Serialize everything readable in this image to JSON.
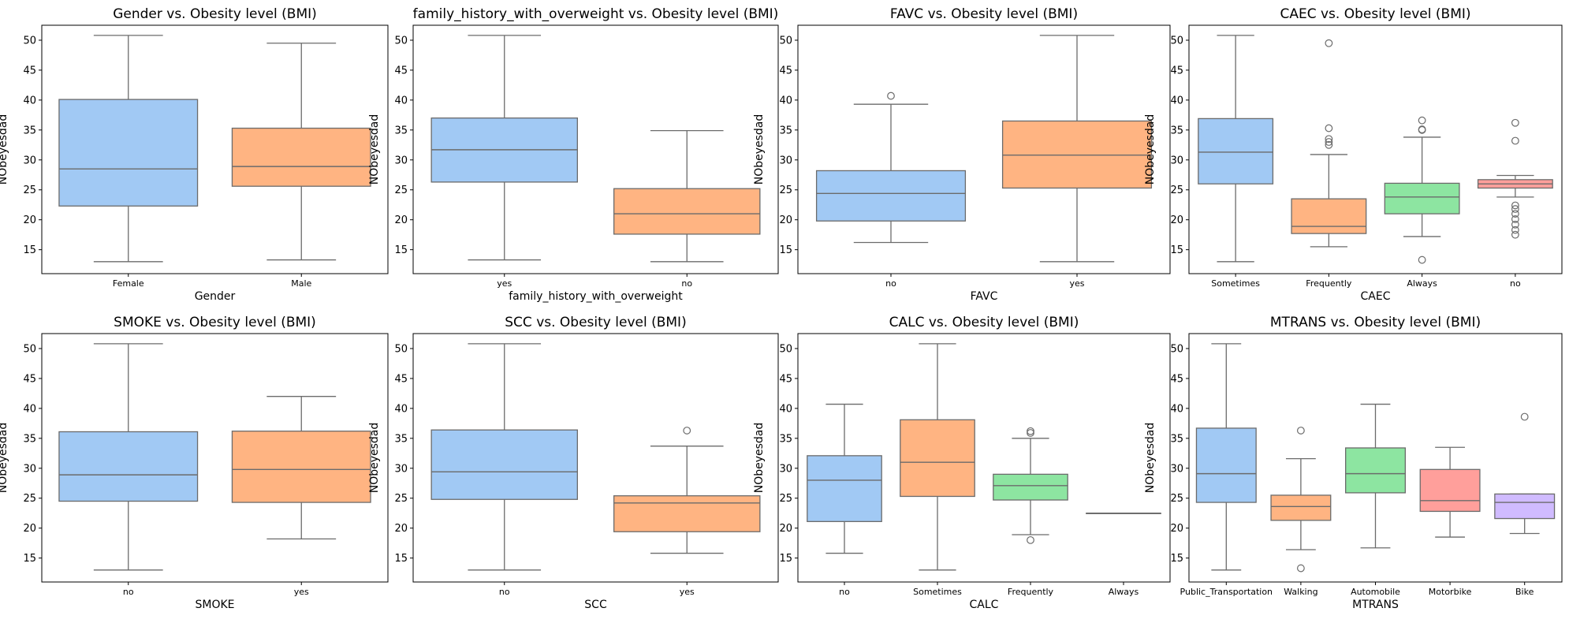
{
  "palette": [
    "#a1c9f4",
    "#ffb482",
    "#8de5a1",
    "#ff9f9b",
    "#d0bbff"
  ],
  "chart_data": [
    {
      "type": "box",
      "title": "Gender vs. Obesity level (BMI)",
      "xlabel": "Gender",
      "ylabel": "NObeyesdad",
      "ylim": [
        11,
        52.5
      ],
      "yticks": [
        15,
        20,
        25,
        30,
        35,
        40,
        45,
        50
      ],
      "categories": [
        "Female",
        "Male"
      ],
      "boxes": [
        {
          "min": 13.0,
          "q1": 22.3,
          "median": 28.5,
          "q3": 40.1,
          "max": 50.8,
          "outliers": []
        },
        {
          "min": 13.3,
          "q1": 25.6,
          "median": 28.9,
          "q3": 35.3,
          "max": 49.5,
          "outliers": []
        }
      ]
    },
    {
      "type": "box",
      "title": "family_history_with_overweight vs. Obesity level (BMI)",
      "xlabel": "family_history_with_overweight",
      "ylabel": "NObeyesdad",
      "ylim": [
        11,
        52.5
      ],
      "yticks": [
        15,
        20,
        25,
        30,
        35,
        40,
        45,
        50
      ],
      "categories": [
        "yes",
        "no"
      ],
      "boxes": [
        {
          "min": 13.3,
          "q1": 26.3,
          "median": 31.7,
          "q3": 37.0,
          "max": 50.8,
          "outliers": []
        },
        {
          "min": 13.0,
          "q1": 17.6,
          "median": 21.0,
          "q3": 25.2,
          "max": 34.9,
          "outliers": []
        }
      ]
    },
    {
      "type": "box",
      "title": "FAVC vs. Obesity level (BMI)",
      "xlabel": "FAVC",
      "ylabel": "NObeyesdad",
      "ylim": [
        11,
        52.5
      ],
      "yticks": [
        15,
        20,
        25,
        30,
        35,
        40,
        45,
        50
      ],
      "categories": [
        "no",
        "yes"
      ],
      "boxes": [
        {
          "min": 16.2,
          "q1": 19.8,
          "median": 24.4,
          "q3": 28.2,
          "max": 39.3,
          "outliers": [
            40.7
          ]
        },
        {
          "min": 13.0,
          "q1": 25.3,
          "median": 30.8,
          "q3": 36.5,
          "max": 50.8,
          "outliers": []
        }
      ]
    },
    {
      "type": "box",
      "title": "CAEC vs. Obesity level (BMI)",
      "xlabel": "CAEC",
      "ylabel": "NObeyesdad",
      "ylim": [
        11,
        52.5
      ],
      "yticks": [
        15,
        20,
        25,
        30,
        35,
        40,
        45,
        50
      ],
      "categories": [
        "Sometimes",
        "Frequently",
        "Always",
        "no"
      ],
      "boxes": [
        {
          "min": 13.0,
          "q1": 26.0,
          "median": 31.3,
          "q3": 36.9,
          "max": 50.8,
          "outliers": []
        },
        {
          "min": 15.5,
          "q1": 17.7,
          "median": 18.9,
          "q3": 23.5,
          "max": 30.9,
          "outliers": [
            32.5,
            33.0,
            33.5,
            35.3,
            49.5
          ]
        },
        {
          "min": 17.2,
          "q1": 21.0,
          "median": 23.8,
          "q3": 26.1,
          "max": 33.8,
          "outliers": [
            13.3,
            35.0,
            35.1,
            36.6
          ]
        },
        {
          "min": 23.8,
          "q1": 25.3,
          "median": 26.0,
          "q3": 26.7,
          "max": 27.4,
          "outliers": [
            17.5,
            18.3,
            19.2,
            20.1,
            21.0,
            21.8,
            22.4,
            33.2,
            36.2
          ]
        }
      ]
    },
    {
      "type": "box",
      "title": "SMOKE vs. Obesity level (BMI)",
      "xlabel": "SMOKE",
      "ylabel": "NObeyesdad",
      "ylim": [
        11,
        52.5
      ],
      "yticks": [
        15,
        20,
        25,
        30,
        35,
        40,
        45,
        50
      ],
      "categories": [
        "no",
        "yes"
      ],
      "boxes": [
        {
          "min": 13.0,
          "q1": 24.5,
          "median": 28.9,
          "q3": 36.1,
          "max": 50.8,
          "outliers": []
        },
        {
          "min": 18.2,
          "q1": 24.3,
          "median": 29.8,
          "q3": 36.2,
          "max": 42.0,
          "outliers": []
        }
      ]
    },
    {
      "type": "box",
      "title": "SCC vs. Obesity level (BMI)",
      "xlabel": "SCC",
      "ylabel": "NObeyesdad",
      "ylim": [
        11,
        52.5
      ],
      "yticks": [
        15,
        20,
        25,
        30,
        35,
        40,
        45,
        50
      ],
      "categories": [
        "no",
        "yes"
      ],
      "boxes": [
        {
          "min": 13.0,
          "q1": 24.8,
          "median": 29.4,
          "q3": 36.4,
          "max": 50.8,
          "outliers": []
        },
        {
          "min": 15.8,
          "q1": 19.4,
          "median": 24.2,
          "q3": 25.4,
          "max": 33.7,
          "outliers": [
            36.3
          ]
        }
      ]
    },
    {
      "type": "box",
      "title": "CALC vs. Obesity level (BMI)",
      "xlabel": "CALC",
      "ylabel": "NObeyesdad",
      "ylim": [
        11,
        52.5
      ],
      "yticks": [
        15,
        20,
        25,
        30,
        35,
        40,
        45,
        50
      ],
      "categories": [
        "no",
        "Sometimes",
        "Frequently",
        "Always"
      ],
      "boxes": [
        {
          "min": 15.8,
          "q1": 21.1,
          "median": 28.0,
          "q3": 32.1,
          "max": 40.7,
          "outliers": []
        },
        {
          "min": 13.0,
          "q1": 25.3,
          "median": 31.0,
          "q3": 38.1,
          "max": 50.8,
          "outliers": []
        },
        {
          "min": 18.9,
          "q1": 24.7,
          "median": 27.1,
          "q3": 29.0,
          "max": 35.0,
          "outliers": [
            18.0,
            35.9,
            36.2
          ]
        },
        {
          "min": 22.5,
          "q1": 22.5,
          "median": 22.5,
          "q3": 22.5,
          "max": 22.5,
          "outliers": []
        }
      ]
    },
    {
      "type": "box",
      "title": "MTRANS vs. Obesity level (BMI)",
      "xlabel": "MTRANS",
      "ylabel": "NObeyesdad",
      "ylim": [
        11,
        52.5
      ],
      "yticks": [
        15,
        20,
        25,
        30,
        35,
        40,
        45,
        50
      ],
      "categories": [
        "Public_Transportation",
        "Walking",
        "Automobile",
        "Motorbike",
        "Bike"
      ],
      "boxes": [
        {
          "min": 13.0,
          "q1": 24.3,
          "median": 29.1,
          "q3": 36.7,
          "max": 50.8,
          "outliers": []
        },
        {
          "min": 16.4,
          "q1": 21.3,
          "median": 23.6,
          "q3": 25.5,
          "max": 31.6,
          "outliers": [
            13.3,
            36.3
          ]
        },
        {
          "min": 16.7,
          "q1": 25.9,
          "median": 29.1,
          "q3": 33.4,
          "max": 40.7,
          "outliers": []
        },
        {
          "min": 18.5,
          "q1": 22.8,
          "median": 24.6,
          "q3": 29.8,
          "max": 33.5,
          "outliers": []
        },
        {
          "min": 19.1,
          "q1": 21.6,
          "median": 24.3,
          "q3": 25.7,
          "max": 25.7,
          "outliers": [
            38.6
          ]
        }
      ]
    }
  ]
}
